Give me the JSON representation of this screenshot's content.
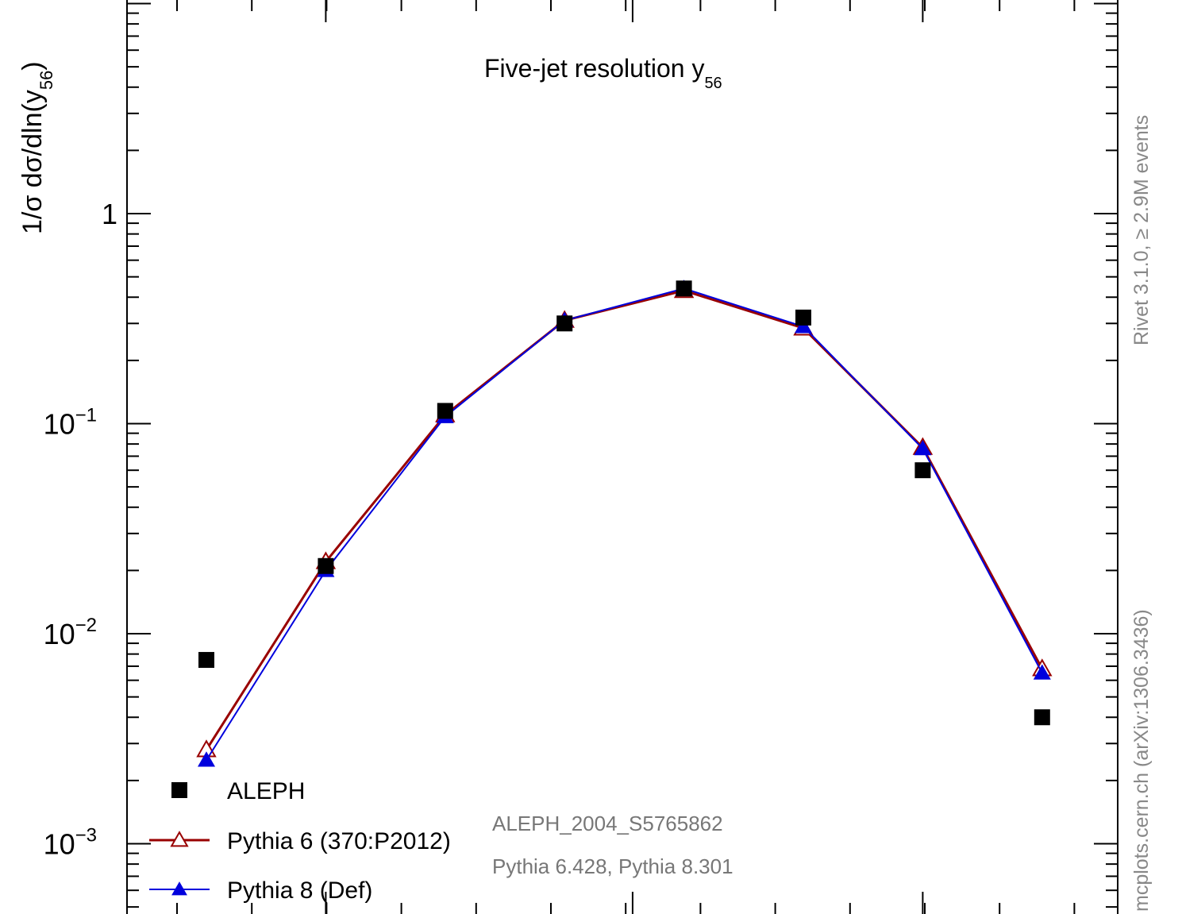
{
  "chart_data": {
    "type": "line",
    "title": "Five-jet resolution y",
    "title_subscript": "56",
    "ylabel_parts": [
      "1/σ  dσ/dln(y",
      "56",
      ")"
    ],
    "yscale": "log",
    "ylim": [
      0.0005,
      10
    ],
    "y_tick_labels": [
      {
        "value": 1,
        "label": "1"
      },
      {
        "value": 0.1,
        "label": "10",
        "exp": "−1"
      },
      {
        "value": 0.01,
        "label": "10",
        "exp": "−2"
      },
      {
        "value": 0.001,
        "label": "10",
        "exp": "−3"
      }
    ],
    "x": [
      1,
      2,
      3,
      4,
      5,
      6,
      7,
      8
    ],
    "series": [
      {
        "name": "ALEPH",
        "color": "#000000",
        "marker": "square",
        "values": [
          0.0075,
          0.021,
          0.115,
          0.3,
          0.44,
          0.32,
          0.06,
          0.004
        ]
      },
      {
        "name": "Pythia 6 (370:P2012)",
        "color": "#990000",
        "marker": "open-triangle",
        "values": [
          0.0028,
          0.022,
          0.11,
          0.31,
          0.43,
          0.285,
          0.077,
          0.0068
        ]
      },
      {
        "name": "Pythia 8 (Def)",
        "color": "#0000dd",
        "marker": "filled-triangle",
        "values": [
          0.0025,
          0.02,
          0.108,
          0.31,
          0.44,
          0.29,
          0.076,
          0.0065
        ]
      }
    ],
    "annotations": {
      "analysis": "ALEPH_2004_S5765862",
      "generators": "Pythia 6.428, Pythia 8.301",
      "side_upper": "Rivet 3.1.0, ≥ 2.9M events",
      "side_lower": "mcplots.cern.ch (arXiv:1306.3436)"
    }
  }
}
